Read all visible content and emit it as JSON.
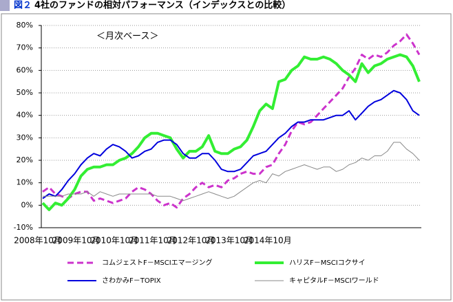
{
  "chart_data": {
    "type": "line",
    "title_prefix": "図２",
    "title": "4社のファンドの相対パフォーマンス（インデックスとの比較）",
    "annotation": "＜月次ベース＞",
    "categories": [
      "2008年10月",
      null,
      null,
      null,
      null,
      null,
      "2009年10月",
      null,
      null,
      null,
      null,
      null,
      "2010年10月",
      null,
      null,
      null,
      null,
      null,
      "2011年10月",
      null,
      null,
      null,
      null,
      null,
      "2012年10月",
      null,
      null,
      null,
      null,
      null,
      "2013年10月",
      null,
      null,
      null,
      null,
      null,
      "2014年10月",
      null,
      null,
      null,
      null,
      null,
      null,
      null,
      null,
      null,
      null,
      null,
      null,
      null,
      null,
      null,
      null,
      null,
      null,
      null,
      null,
      null,
      null,
      null
    ],
    "ylim": [
      -10,
      80
    ],
    "yticks": [
      {
        "value": -10,
        "label": "-10%"
      },
      {
        "value": 0,
        "label": "0%"
      },
      {
        "value": 10,
        "label": "10%"
      },
      {
        "value": 20,
        "label": "20%"
      },
      {
        "value": 30,
        "label": "30%"
      },
      {
        "value": 40,
        "label": "40%"
      },
      {
        "value": 50,
        "label": "50%"
      },
      {
        "value": 60,
        "label": "60%"
      },
      {
        "value": 70,
        "label": "70%"
      },
      {
        "value": 80,
        "label": "80%"
      }
    ],
    "grid": true,
    "legend": "bottom",
    "series": [
      {
        "name": "コムジェストF－MSCIエマージング",
        "color": "#cc33cc",
        "dash": true,
        "values": [
          6,
          8,
          5,
          4,
          3,
          5,
          6,
          6,
          2,
          3,
          2,
          1,
          2,
          3,
          6,
          8,
          7,
          5,
          2,
          0,
          1,
          -1,
          3,
          5,
          8,
          10,
          8,
          9,
          8,
          11,
          12,
          14,
          15,
          14,
          14,
          17,
          18,
          23,
          27,
          33,
          37,
          36,
          37,
          40,
          43,
          46,
          49,
          52,
          57,
          61,
          67,
          65,
          67,
          66,
          68,
          71,
          73,
          76,
          72,
          67
        ]
      },
      {
        "name": "ハリスF－MSCIコクサイ",
        "color": "#33ee33",
        "dash": false,
        "values": [
          1,
          -2,
          1,
          0,
          3,
          7,
          13,
          16,
          17,
          17,
          18,
          18,
          20,
          21,
          23,
          26,
          30,
          32,
          32,
          31,
          30,
          25,
          21,
          24,
          24,
          26,
          31,
          24,
          23,
          23,
          25,
          26,
          29,
          35,
          42,
          45,
          43,
          55,
          56,
          60,
          62,
          66,
          65,
          65,
          66,
          65,
          63,
          60,
          58,
          55,
          63,
          59,
          62,
          63,
          65,
          66,
          67,
          66,
          62,
          55
        ]
      },
      {
        "name": "さわかみF－TOPIX",
        "color": "#0000dd",
        "dash": false,
        "values": [
          3,
          5,
          4,
          7,
          11,
          14,
          18,
          21,
          23,
          22,
          25,
          27,
          26,
          24,
          21,
          22,
          24,
          25,
          28,
          29,
          29,
          27,
          23,
          21,
          21,
          23,
          23,
          20,
          16,
          15,
          15,
          16,
          19,
          22,
          23,
          24,
          27,
          30,
          32,
          35,
          37,
          37,
          38,
          38,
          38,
          39,
          40,
          40,
          42,
          38,
          41,
          44,
          46,
          47,
          49,
          51,
          50,
          47,
          42,
          40
        ]
      },
      {
        "name": "キャピタルF－MSCIワールド",
        "color": "#888888",
        "dash": false,
        "values": [
          4,
          4,
          4,
          4,
          5,
          5,
          5,
          6,
          4,
          6,
          5,
          4,
          5,
          5,
          5,
          5,
          5,
          5,
          4,
          4,
          4,
          3,
          2,
          3,
          4,
          5,
          6,
          5,
          4,
          3,
          4,
          6,
          8,
          10,
          11,
          10,
          14,
          13,
          15,
          16,
          17,
          18,
          17,
          16,
          17,
          17,
          15,
          16,
          18,
          19,
          21,
          20,
          22,
          22,
          24,
          28,
          28,
          25,
          23,
          20
        ]
      }
    ]
  }
}
